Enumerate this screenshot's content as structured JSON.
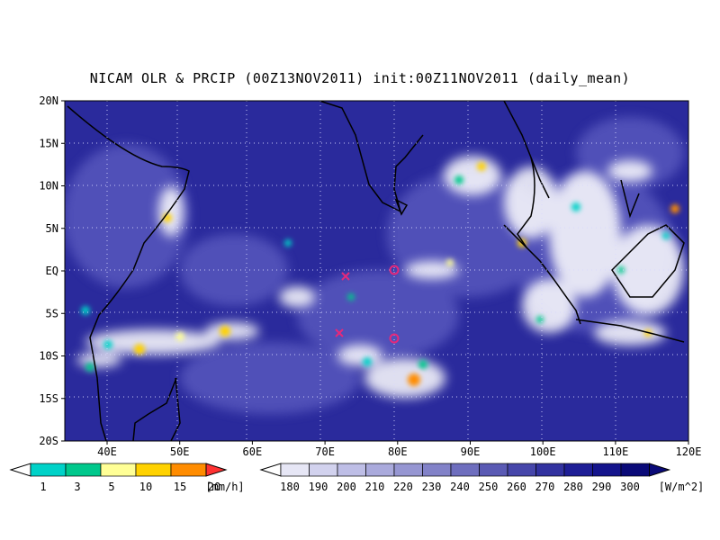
{
  "title": "NICAM OLR & PRCIP (00Z13NOV2011) init:00Z11NOV2011 (daily_mean)",
  "lat_labels": [
    "20N",
    "15N",
    "10N",
    "5N",
    "EQ",
    "5S",
    "10S",
    "15S",
    "20S"
  ],
  "lon_labels": [
    "40E",
    "50E",
    "60E",
    "70E",
    "80E",
    "90E",
    "100E",
    "110E",
    "120E"
  ],
  "precip_bar": {
    "labels": [
      "1",
      "3",
      "5",
      "10",
      "15",
      "20"
    ],
    "unit": "[mm/h]",
    "colors": [
      "#00d2c8",
      "#00c88c",
      "#ffff96",
      "#ffd200",
      "#ff8c00",
      "#ff3232"
    ]
  },
  "olr_bar": {
    "labels": [
      "180",
      "190",
      "200",
      "210",
      "220",
      "230",
      "240",
      "250",
      "260",
      "270",
      "280",
      "290",
      "300"
    ],
    "unit": "[W/m^2]",
    "colors": [
      "#e6e6f5",
      "#d2d2ee",
      "#bebee6",
      "#aaaadc",
      "#9696d2",
      "#8282c8",
      "#6e6ebe",
      "#5a5ab4",
      "#4646aa",
      "#3232a0",
      "#1e1e96",
      "#14148c",
      "#0a0a78"
    ]
  },
  "colors": {
    "ocean": "#2a2a9c",
    "cloud": "#ffffff",
    "marker": "#e6287a"
  }
}
